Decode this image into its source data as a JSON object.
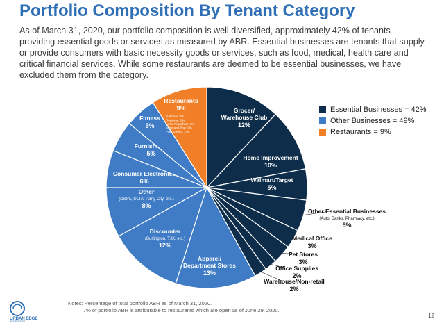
{
  "header": {
    "title": "Portfolio Composition By Tenant Category",
    "intro": "As of March 31, 2020, our portfolio composition is well diversified, approximately 42% of tenants providing essential goods or services as measured by ABR. Essential businesses are tenants that supply or provide consumers with basic necessity goods or services, such as food, medical, health care and critical financial services. While some restaurants are deemed to be essential businesses, we have excluded them from the category."
  },
  "colors": {
    "essential": "#0d2d4a",
    "other": "#3f7cc5",
    "restaurants": "#f07f27"
  },
  "chart_data": {
    "type": "pie",
    "legend_position": "top-right",
    "legend": [
      {
        "label": "Essential Businesses = 42%",
        "group": "essential"
      },
      {
        "label": "Other Businesses = 49%",
        "group": "other"
      },
      {
        "label": "Restaurants = 9%",
        "group": "restaurants"
      }
    ],
    "slices": [
      {
        "name": "Grocer/ Warehouse Club",
        "lines": [
          "Grocer/",
          "Warehouse Club"
        ],
        "value": 12,
        "pct_label": "12%",
        "group": "essential"
      },
      {
        "name": "Home Improvement",
        "lines": [
          "Home Improvement"
        ],
        "value": 10,
        "pct_label": "10%",
        "group": "essential"
      },
      {
        "name": "Walmart/Target",
        "lines": [
          "Walmart/Target"
        ],
        "value": 5,
        "pct_label": "5%",
        "group": "essential"
      },
      {
        "name": "Other Essential Businesses",
        "lines": [
          "Other Essential Businesses"
        ],
        "sub": "(Auto, Banks, Pharmacy, etc.)",
        "value": 5,
        "pct_label": "5%",
        "group": "essential"
      },
      {
        "name": "Medical Office",
        "lines": [
          "Medical Office"
        ],
        "value": 3,
        "pct_label": "3%",
        "group": "essential"
      },
      {
        "name": "Pet Stores",
        "lines": [
          "Pet Stores"
        ],
        "value": 3,
        "pct_label": "3%",
        "group": "essential"
      },
      {
        "name": "Office Supplies",
        "lines": [
          "Office Supplies"
        ],
        "value": 2,
        "pct_label": "2%",
        "group": "essential"
      },
      {
        "name": "Warehouse/Non-retail",
        "lines": [
          "Warehouse/Non-retail"
        ],
        "value": 2,
        "pct_label": "2%",
        "group": "essential"
      },
      {
        "name": "Apparel/ Department Stores",
        "lines": [
          "Apparel/",
          "Department Stores"
        ],
        "value": 13,
        "pct_label": "13%",
        "group": "other"
      },
      {
        "name": "Discounter",
        "lines": [
          "Discounter"
        ],
        "sub": "(Burlington, TJX, etc.)",
        "value": 12,
        "pct_label": "12%",
        "group": "other"
      },
      {
        "name": "Other",
        "lines": [
          "Other"
        ],
        "sub": "(Dick's, ULTA, Party City, etc.)",
        "value": 8,
        "pct_label": "8%",
        "group": "other"
      },
      {
        "name": "Consumer Electronics",
        "lines": [
          "Consumer Electronics"
        ],
        "value": 6,
        "pct_label": "6%",
        "group": "other"
      },
      {
        "name": "Furnishings",
        "lines": [
          "Furnishings"
        ],
        "value": 5,
        "pct_label": "5%",
        "group": "other"
      },
      {
        "name": "Fitness",
        "lines": [
          "Fitness"
        ],
        "value": 5,
        "pct_label": "5%",
        "group": "other"
      },
      {
        "name": "Restaurants",
        "lines": [
          "Restaurants"
        ],
        "value": 9,
        "pct_label": "9%",
        "group": "restaurants",
        "details": [
          "National: 3%",
          "Regional: 1%",
          "Local Franchise: 2%",
          "Mom and Pop: 2%",
          "Puerto Rico: 1%"
        ]
      }
    ]
  },
  "footer": {
    "logo_text": "URBAN EDGE PROPERTIES",
    "note1": "Notes: Percentage of total portfolio ABR as of March 31, 2020.",
    "note2": "7% of portfolio ABR is attributable to restaurants which are open as of June 29, 2020.",
    "page_number": "12"
  }
}
